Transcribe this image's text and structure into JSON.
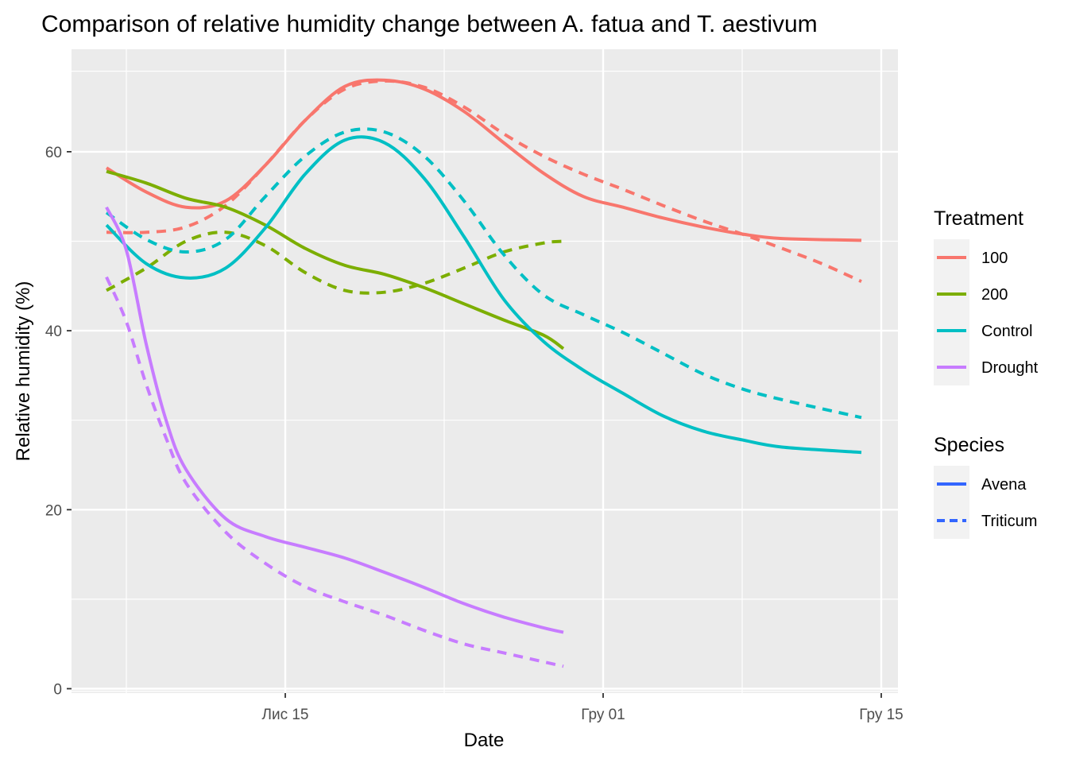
{
  "chart_data": {
    "type": "line",
    "title": "Comparison of relative humidity change between A. fatua and T. aestivum",
    "xlabel": "Date",
    "ylabel": "Relative humidity (%)",
    "x_ticks": [
      "Лис 15",
      "Гру 01",
      "Гру 15"
    ],
    "y_ticks": [
      0,
      20,
      40,
      60
    ],
    "ylim": [
      -0.5,
      70
    ],
    "grid": true,
    "legend_position": "right",
    "legends": [
      {
        "title": "Treatment",
        "entries": [
          {
            "label": "100",
            "color": "#F8766D"
          },
          {
            "label": "200",
            "color": "#7CAE00"
          },
          {
            "label": "Control",
            "color": "#00BFC4"
          },
          {
            "label": "Drought",
            "color": "#C77CFF"
          }
        ]
      },
      {
        "title": "Species",
        "entries": [
          {
            "label": "Avena",
            "color": "#3366FF",
            "dash": "solid"
          },
          {
            "label": "Triticum",
            "color": "#3366FF",
            "dash": "dashed"
          }
        ]
      }
    ],
    "series": [
      {
        "treatment": "100",
        "species": "Avena",
        "color": "#F8766D",
        "dash": "solid",
        "points": [
          [
            "11-06",
            58.2
          ],
          [
            "11-08",
            55.5
          ],
          [
            "11-10",
            53.8
          ],
          [
            "11-12",
            54.5
          ],
          [
            "11-14",
            58.5
          ],
          [
            "11-16",
            63.5
          ],
          [
            "11-18",
            67.3
          ],
          [
            "11-20",
            68.0
          ],
          [
            "11-22",
            67.0
          ],
          [
            "11-24",
            64.5
          ],
          [
            "11-26",
            61.0
          ],
          [
            "11-28",
            57.6
          ],
          [
            "11-30",
            55.0
          ],
          [
            "12-02",
            53.8
          ],
          [
            "12-04",
            52.6
          ],
          [
            "12-06",
            51.6
          ],
          [
            "12-08",
            50.8
          ],
          [
            "12-10",
            50.3
          ],
          [
            "12-14",
            50.1
          ]
        ]
      },
      {
        "treatment": "100",
        "species": "Triticum",
        "color": "#F8766D",
        "dash": "dashed",
        "points": [
          [
            "11-06",
            51.0
          ],
          [
            "11-08",
            51.0
          ],
          [
            "11-10",
            51.6
          ],
          [
            "11-12",
            54.0
          ],
          [
            "11-14",
            58.5
          ],
          [
            "11-16",
            63.5
          ],
          [
            "11-18",
            67.0
          ],
          [
            "11-20",
            67.9
          ],
          [
            "11-22",
            67.2
          ],
          [
            "11-24",
            65.0
          ],
          [
            "11-26",
            62.0
          ],
          [
            "11-28",
            59.5
          ],
          [
            "11-30",
            57.5
          ],
          [
            "12-02",
            55.8
          ],
          [
            "12-04",
            54.0
          ],
          [
            "12-06",
            52.3
          ],
          [
            "12-08",
            50.8
          ],
          [
            "12-10",
            49.2
          ],
          [
            "12-12",
            47.5
          ],
          [
            "12-14",
            45.5
          ]
        ]
      },
      {
        "treatment": "200",
        "species": "Avena",
        "color": "#7CAE00",
        "dash": "solid",
        "points": [
          [
            "11-06",
            57.8
          ],
          [
            "11-08",
            56.5
          ],
          [
            "11-10",
            54.8
          ],
          [
            "11-12",
            53.8
          ],
          [
            "11-14",
            51.8
          ],
          [
            "11-16",
            49.2
          ],
          [
            "11-18",
            47.3
          ],
          [
            "11-20",
            46.3
          ],
          [
            "11-22",
            44.8
          ],
          [
            "11-24",
            43.0
          ],
          [
            "11-26",
            41.2
          ],
          [
            "11-28",
            39.5
          ],
          [
            "11-29",
            38.0
          ]
        ]
      },
      {
        "treatment": "200",
        "species": "Triticum",
        "color": "#7CAE00",
        "dash": "dashed",
        "points": [
          [
            "11-06",
            44.5
          ],
          [
            "11-08",
            47.0
          ],
          [
            "11-10",
            50.0
          ],
          [
            "11-12",
            51.0
          ],
          [
            "11-14",
            49.5
          ],
          [
            "11-16",
            46.5
          ],
          [
            "11-18",
            44.5
          ],
          [
            "11-20",
            44.3
          ],
          [
            "11-22",
            45.3
          ],
          [
            "11-24",
            47.0
          ],
          [
            "11-26",
            48.8
          ],
          [
            "11-28",
            49.8
          ],
          [
            "11-29",
            50.0
          ]
        ]
      },
      {
        "treatment": "Control",
        "species": "Avena",
        "color": "#00BFC4",
        "dash": "solid",
        "points": [
          [
            "11-06",
            51.8
          ],
          [
            "11-08",
            47.5
          ],
          [
            "11-10",
            45.9
          ],
          [
            "11-12",
            47.0
          ],
          [
            "11-14",
            51.5
          ],
          [
            "11-16",
            57.5
          ],
          [
            "11-18",
            61.3
          ],
          [
            "11-20",
            61.0
          ],
          [
            "11-22",
            57.0
          ],
          [
            "11-24",
            50.5
          ],
          [
            "11-26",
            43.5
          ],
          [
            "11-28",
            38.8
          ],
          [
            "11-30",
            35.6
          ],
          [
            "12-02",
            33.0
          ],
          [
            "12-04",
            30.5
          ],
          [
            "12-06",
            28.8
          ],
          [
            "12-08",
            27.8
          ],
          [
            "12-10",
            27.0
          ],
          [
            "12-14",
            26.4
          ]
        ]
      },
      {
        "treatment": "Control",
        "species": "Triticum",
        "color": "#00BFC4",
        "dash": "dashed",
        "points": [
          [
            "11-06",
            53.2
          ],
          [
            "11-08",
            50.2
          ],
          [
            "11-10",
            48.8
          ],
          [
            "11-12",
            50.2
          ],
          [
            "11-14",
            55.0
          ],
          [
            "11-16",
            59.5
          ],
          [
            "11-18",
            62.2
          ],
          [
            "11-20",
            62.2
          ],
          [
            "11-22",
            59.5
          ],
          [
            "11-24",
            54.5
          ],
          [
            "11-26",
            48.5
          ],
          [
            "11-28",
            44.0
          ],
          [
            "11-30",
            41.8
          ],
          [
            "12-02",
            39.8
          ],
          [
            "12-04",
            37.5
          ],
          [
            "12-06",
            35.2
          ],
          [
            "12-08",
            33.5
          ],
          [
            "12-10",
            32.3
          ],
          [
            "12-14",
            30.3
          ]
        ]
      },
      {
        "treatment": "Drought",
        "species": "Avena",
        "color": "#C77CFF",
        "dash": "solid",
        "points": [
          [
            "11-06",
            53.8
          ],
          [
            "11-07",
            49.0
          ],
          [
            "11-08",
            38.5
          ],
          [
            "11-09",
            30.0
          ],
          [
            "11-10",
            24.5
          ],
          [
            "11-12",
            19.0
          ],
          [
            "11-14",
            17.0
          ],
          [
            "11-16",
            15.8
          ],
          [
            "11-18",
            14.6
          ],
          [
            "11-20",
            13.0
          ],
          [
            "11-22",
            11.3
          ],
          [
            "11-24",
            9.5
          ],
          [
            "11-26",
            8.0
          ],
          [
            "11-28",
            6.8
          ],
          [
            "11-29",
            6.3
          ]
        ]
      },
      {
        "treatment": "Drought",
        "species": "Triticum",
        "color": "#C77CFF",
        "dash": "dashed",
        "points": [
          [
            "11-06",
            46.0
          ],
          [
            "11-07",
            41.0
          ],
          [
            "11-08",
            34.0
          ],
          [
            "11-09",
            28.0
          ],
          [
            "11-10",
            23.0
          ],
          [
            "11-12",
            17.5
          ],
          [
            "11-14",
            14.0
          ],
          [
            "11-16",
            11.4
          ],
          [
            "11-18",
            9.7
          ],
          [
            "11-20",
            8.2
          ],
          [
            "11-22",
            6.5
          ],
          [
            "11-24",
            5.0
          ],
          [
            "11-26",
            4.0
          ],
          [
            "11-28",
            3.0
          ],
          [
            "11-29",
            2.5
          ]
        ]
      }
    ]
  }
}
